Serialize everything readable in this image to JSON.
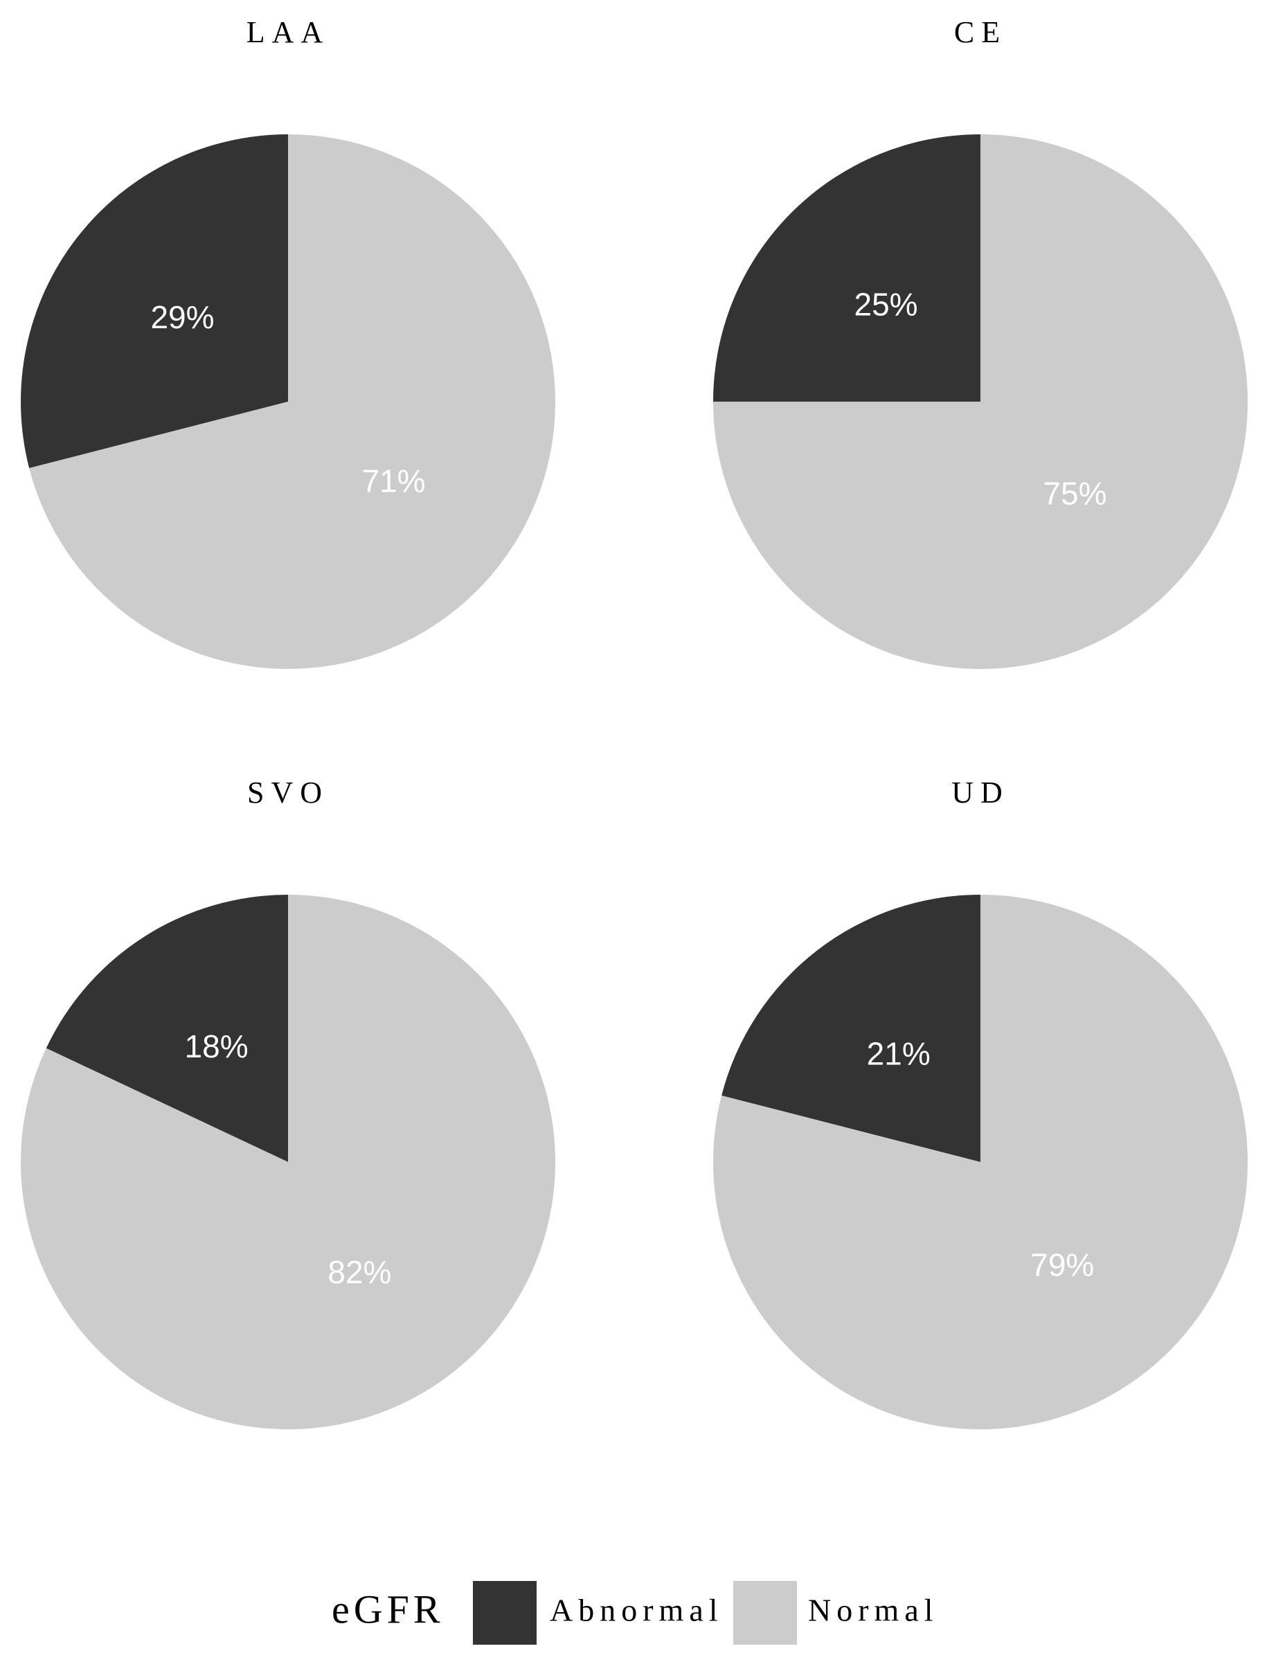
{
  "chart_data": [
    {
      "type": "pie",
      "title": "LAA",
      "categories": [
        "Abnormal",
        "Normal"
      ],
      "values": [
        29,
        71
      ],
      "value_labels": [
        "29%",
        "71%"
      ],
      "colors": [
        "#333333",
        "#cccccc"
      ]
    },
    {
      "type": "pie",
      "title": "CE",
      "categories": [
        "Abnormal",
        "Normal"
      ],
      "values": [
        25,
        75
      ],
      "value_labels": [
        "25%",
        "75%"
      ],
      "colors": [
        "#333333",
        "#cccccc"
      ]
    },
    {
      "type": "pie",
      "title": "SVO",
      "categories": [
        "Abnormal",
        "Normal"
      ],
      "values": [
        18,
        82
      ],
      "value_labels": [
        "18%",
        "82%"
      ],
      "colors": [
        "#333333",
        "#cccccc"
      ]
    },
    {
      "type": "pie",
      "title": "UD",
      "categories": [
        "Abnormal",
        "Normal"
      ],
      "values": [
        21,
        79
      ],
      "value_labels": [
        "21%",
        "79%"
      ],
      "colors": [
        "#333333",
        "#cccccc"
      ]
    }
  ],
  "legend": {
    "title": "eGFR",
    "position": "bottom"
  }
}
